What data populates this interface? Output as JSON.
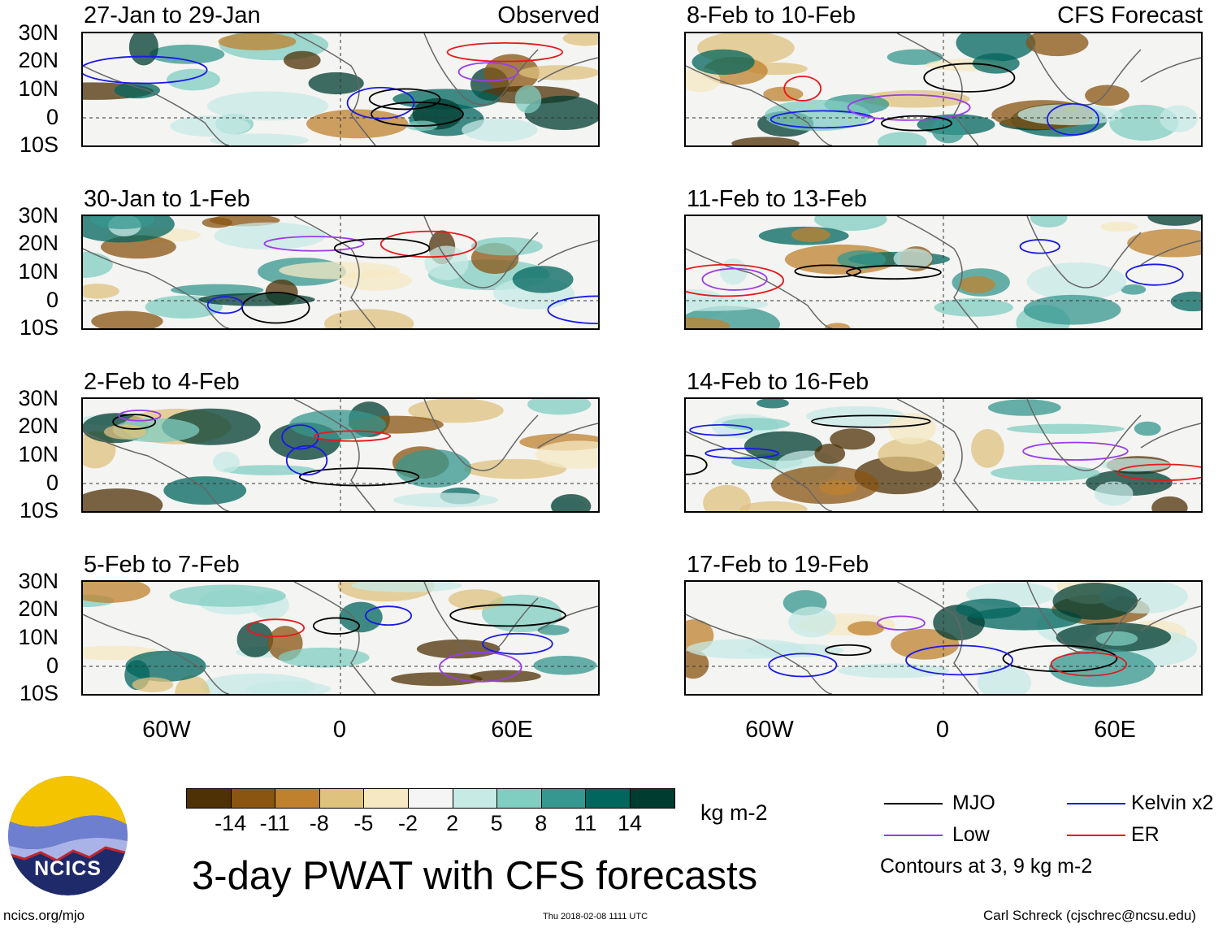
{
  "header": {
    "left_label": "Observed",
    "right_label": "CFS Forecast"
  },
  "panels_left": [
    {
      "title": "27-Jan to 29-Jan"
    },
    {
      "title": "30-Jan to 1-Feb"
    },
    {
      "title": "2-Feb to 4-Feb"
    },
    {
      "title": "5-Feb to 7-Feb"
    }
  ],
  "panels_right": [
    {
      "title": "8-Feb to 10-Feb"
    },
    {
      "title": "11-Feb to 13-Feb"
    },
    {
      "title": "14-Feb to 16-Feb"
    },
    {
      "title": "17-Feb to 19-Feb"
    }
  ],
  "axes": {
    "lat_labels": [
      "30N",
      "20N",
      "10N",
      "0",
      "10S"
    ],
    "lon_labels": [
      "60W",
      "0",
      "60E"
    ]
  },
  "colorbar": {
    "colors": [
      "#4f3106",
      "#8a5411",
      "#bf812d",
      "#dfc27d",
      "#f6e8c3",
      "#f5f5f5",
      "#c7eae5",
      "#80cdc1",
      "#35978f",
      "#01665e",
      "#003c30"
    ],
    "ticks": [
      "-14",
      "-11",
      "-8",
      "-5",
      "-2",
      "2",
      "5",
      "8",
      "11",
      "14"
    ],
    "units": "kg m-2"
  },
  "title": "3-day PWAT with CFS forecasts",
  "legend": {
    "items": [
      {
        "label": "MJO",
        "color": "#000000"
      },
      {
        "label": "Kelvin x2",
        "color": "#1a1ae6"
      },
      {
        "label": "Low",
        "color": "#9a3de6"
      },
      {
        "label": "ER",
        "color": "#e61a1a"
      }
    ],
    "note": "Contours at 3, 9 kg m-2"
  },
  "logo_text": "NCICS",
  "footer": {
    "url": "ncics.org/mjo",
    "timestamp": "Thu 2018-02-08 1111 UTC",
    "author": "Carl Schreck (cjschrec@ncsu.edu)"
  }
}
